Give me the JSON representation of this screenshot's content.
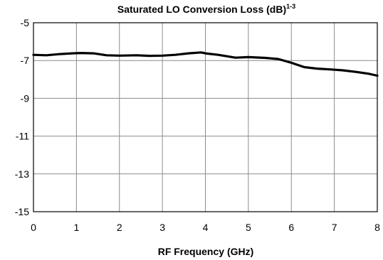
{
  "chart_data": {
    "type": "line",
    "title": "Saturated LO Conversion Loss (dB)",
    "title_superscript": "1-3",
    "xlabel": "RF Frequency (GHz)",
    "ylabel": "",
    "xlim": [
      0,
      8
    ],
    "ylim": [
      -15,
      -5
    ],
    "x_ticks": [
      "0",
      "1",
      "2",
      "3",
      "4",
      "5",
      "6",
      "7",
      "8"
    ],
    "y_ticks": [
      "-5",
      "-7",
      "-9",
      "-11",
      "-13",
      "-15"
    ],
    "grid": true,
    "legend": "none",
    "series": [
      {
        "color": "#000000",
        "x": [
          0,
          0.3,
          0.6,
          0.9,
          1.1,
          1.4,
          1.7,
          2.0,
          2.4,
          2.7,
          3.0,
          3.3,
          3.6,
          3.9,
          4.0,
          4.3,
          4.7,
          5.0,
          5.4,
          5.7,
          6.0,
          6.3,
          6.6,
          6.9,
          7.2,
          7.5,
          7.8,
          8.0
        ],
        "y": [
          -6.7,
          -6.72,
          -6.66,
          -6.62,
          -6.6,
          -6.62,
          -6.72,
          -6.74,
          -6.72,
          -6.75,
          -6.74,
          -6.7,
          -6.62,
          -6.57,
          -6.62,
          -6.7,
          -6.85,
          -6.82,
          -6.86,
          -6.92,
          -7.12,
          -7.35,
          -7.43,
          -7.47,
          -7.52,
          -7.6,
          -7.7,
          -7.8
        ]
      }
    ]
  }
}
